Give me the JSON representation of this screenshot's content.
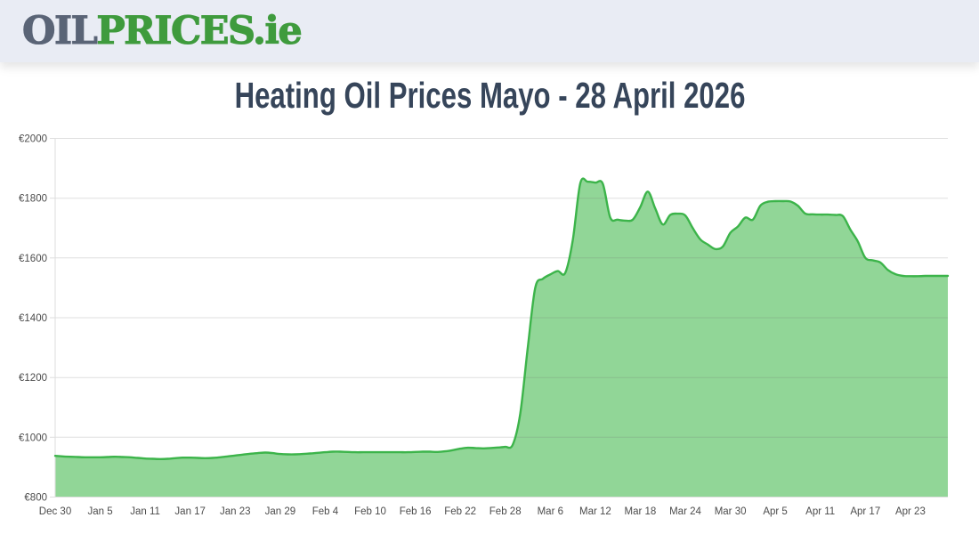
{
  "header": {
    "logo": {
      "part1": "OIL",
      "part2": "PRICES",
      "part3": ".ie"
    },
    "colors": {
      "part1": "#5a6476",
      "part2": "#3f9b3d",
      "background": "#e9ecf4"
    }
  },
  "page_title": "Heating Oil Prices Mayo - 28 April 2026",
  "title_color": "#36455a",
  "chart_data": {
    "type": "area",
    "title": "Heating Oil Prices Mayo - 28 April 2026",
    "xlabel": "",
    "ylabel": "",
    "currency_prefix": "€",
    "ylim": [
      800,
      2000
    ],
    "y_ticks": [
      800,
      1000,
      1200,
      1400,
      1600,
      1800,
      2000
    ],
    "y_tick_labels": [
      "€800",
      "€1000",
      "€1200",
      "€1400",
      "€1600",
      "€1800",
      "€2000"
    ],
    "x_tick_labels": [
      "Dec 30",
      "Jan 5",
      "Jan 11",
      "Jan 17",
      "Jan 23",
      "Jan 29",
      "Feb 4",
      "Feb 10",
      "Feb 16",
      "Feb 22",
      "Feb 28",
      "Mar 6",
      "Mar 12",
      "Mar 18",
      "Mar 24",
      "Mar 30",
      "Apr 5",
      "Apr 11",
      "Apr 17",
      "Apr 23"
    ],
    "x_tick_interval_days": 6,
    "x_start": "Dec 30",
    "x_end": "Apr 28",
    "grid": true,
    "legend": false,
    "line_color": "#3cb44a",
    "fill_color": "#91d697",
    "grid_color": "rgba(110,110,110,0.22)",
    "axis_color": "#dedede",
    "tick_label_color": "#4c4c4c",
    "dates": [
      "Dec 30",
      "Dec 31",
      "Jan 1",
      "Jan 2",
      "Jan 3",
      "Jan 4",
      "Jan 5",
      "Jan 6",
      "Jan 7",
      "Jan 8",
      "Jan 9",
      "Jan 10",
      "Jan 11",
      "Jan 12",
      "Jan 13",
      "Jan 14",
      "Jan 15",
      "Jan 16",
      "Jan 17",
      "Jan 18",
      "Jan 19",
      "Jan 20",
      "Jan 21",
      "Jan 22",
      "Jan 23",
      "Jan 24",
      "Jan 25",
      "Jan 26",
      "Jan 27",
      "Jan 28",
      "Jan 29",
      "Jan 30",
      "Jan 31",
      "Feb 1",
      "Feb 2",
      "Feb 3",
      "Feb 4",
      "Feb 5",
      "Feb 6",
      "Feb 7",
      "Feb 8",
      "Feb 9",
      "Feb 10",
      "Feb 11",
      "Feb 12",
      "Feb 13",
      "Feb 14",
      "Feb 15",
      "Feb 16",
      "Feb 17",
      "Feb 18",
      "Feb 19",
      "Feb 20",
      "Feb 21",
      "Feb 22",
      "Feb 23",
      "Feb 24",
      "Feb 25",
      "Feb 26",
      "Feb 27",
      "Feb 28",
      "Mar 1",
      "Mar 2",
      "Mar 3",
      "Mar 4",
      "Mar 5",
      "Mar 6",
      "Mar 7",
      "Mar 8",
      "Mar 9",
      "Mar 10",
      "Mar 11",
      "Mar 12",
      "Mar 13",
      "Mar 14",
      "Mar 15",
      "Mar 16",
      "Mar 17",
      "Mar 18",
      "Mar 19",
      "Mar 20",
      "Mar 21",
      "Mar 22",
      "Mar 23",
      "Mar 24",
      "Mar 25",
      "Mar 26",
      "Mar 27",
      "Mar 28",
      "Mar 29",
      "Mar 30",
      "Mar 31",
      "Apr 1",
      "Apr 2",
      "Apr 3",
      "Apr 4",
      "Apr 5",
      "Apr 6",
      "Apr 7",
      "Apr 8",
      "Apr 9",
      "Apr 10",
      "Apr 11",
      "Apr 12",
      "Apr 13",
      "Apr 14",
      "Apr 15",
      "Apr 16",
      "Apr 17",
      "Apr 18",
      "Apr 19",
      "Apr 20",
      "Apr 21",
      "Apr 22",
      "Apr 23",
      "Apr 24",
      "Apr 25",
      "Apr 26",
      "Apr 27",
      "Apr 28"
    ],
    "values": [
      938,
      936,
      935,
      934,
      933,
      933,
      933,
      934,
      935,
      934,
      933,
      931,
      929,
      928,
      927,
      928,
      930,
      932,
      932,
      931,
      930,
      931,
      933,
      936,
      939,
      942,
      945,
      947,
      949,
      947,
      944,
      943,
      943,
      944,
      946,
      948,
      950,
      952,
      952,
      951,
      950,
      950,
      950,
      950,
      950,
      950,
      950,
      950,
      951,
      952,
      952,
      951,
      953,
      957,
      962,
      965,
      964,
      963,
      964,
      966,
      968,
      975,
      1080,
      1300,
      1500,
      1530,
      1545,
      1556,
      1550,
      1660,
      1850,
      1855,
      1852,
      1848,
      1735,
      1728,
      1725,
      1728,
      1770,
      1822,
      1765,
      1712,
      1744,
      1748,
      1742,
      1700,
      1662,
      1645,
      1630,
      1638,
      1684,
      1705,
      1735,
      1728,
      1775,
      1788,
      1790,
      1790,
      1789,
      1775,
      1748,
      1746,
      1745,
      1745,
      1744,
      1740,
      1695,
      1655,
      1600,
      1592,
      1585,
      1560,
      1546,
      1540,
      1539,
      1539,
      1540,
      1540,
      1540,
      1540
    ]
  }
}
